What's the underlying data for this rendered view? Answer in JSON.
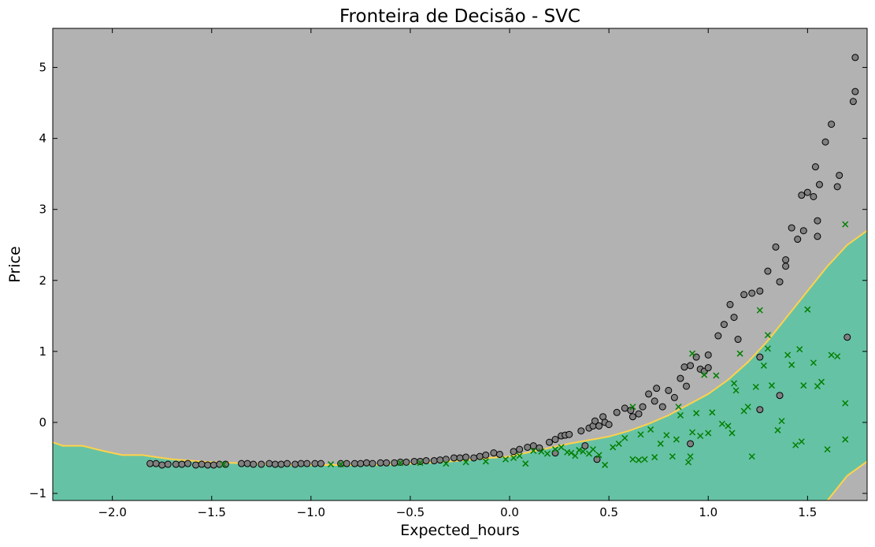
{
  "chart_data": {
    "type": "scatter",
    "title": "Fronteira de Decisão - SVC",
    "xlabel": "Expected_hours",
    "ylabel": "Price",
    "xlim": [
      -2.3,
      1.8
    ],
    "ylim": [
      -1.1,
      5.55
    ],
    "x_ticks": [
      -2.0,
      -1.5,
      -1.0,
      -0.5,
      0.0,
      0.5,
      1.0,
      1.5
    ],
    "x_tick_labels": [
      "−2.0",
      "−1.5",
      "−1.0",
      "−0.5",
      "0.0",
      "0.5",
      "1.0",
      "1.5"
    ],
    "y_ticks": [
      -1,
      0,
      1,
      2,
      3,
      4,
      5
    ],
    "y_tick_labels": [
      "−1",
      "0",
      "1",
      "2",
      "3",
      "4",
      "5"
    ],
    "grid": false,
    "background_color": "#b2b2b2",
    "region_color": "#66c2a5",
    "boundary_color": "#ffd24a",
    "decision_boundary": {
      "x": [
        -2.3,
        -2.25,
        -2.15,
        -2.05,
        -1.95,
        -1.85,
        -1.7,
        -1.5,
        -1.3,
        -1.1,
        -0.9,
        -0.7,
        -0.5,
        -0.3,
        -0.1,
        0.0,
        0.1,
        0.2,
        0.3,
        0.4,
        0.5,
        0.6,
        0.7,
        0.8,
        0.9,
        1.0,
        1.1,
        1.2,
        1.3,
        1.4,
        1.5,
        1.6,
        1.7,
        1.8
      ],
      "y": [
        -0.28,
        -0.33,
        -0.33,
        -0.4,
        -0.46,
        -0.46,
        -0.52,
        -0.56,
        -0.58,
        -0.6,
        -0.6,
        -0.6,
        -0.58,
        -0.55,
        -0.5,
        -0.48,
        -0.42,
        -0.36,
        -0.3,
        -0.25,
        -0.2,
        -0.12,
        -0.02,
        0.1,
        0.25,
        0.4,
        0.6,
        0.85,
        1.15,
        1.5,
        1.85,
        2.2,
        2.5,
        2.7
      ]
    },
    "secondary_region": {
      "x": [
        1.6,
        1.7,
        1.8
      ],
      "y": [
        -1.1,
        -0.75,
        -0.55
      ]
    },
    "series": [
      {
        "name": "",
        "marker": "circle",
        "color": "#808080",
        "points": [
          [
            -1.81,
            -0.58
          ],
          [
            -1.78,
            -0.58
          ],
          [
            -1.75,
            -0.6
          ],
          [
            -1.72,
            -0.59
          ],
          [
            -1.68,
            -0.59
          ],
          [
            -1.65,
            -0.59
          ],
          [
            -1.62,
            -0.58
          ],
          [
            -1.58,
            -0.6
          ],
          [
            -1.55,
            -0.59
          ],
          [
            -1.52,
            -0.6
          ],
          [
            -1.49,
            -0.6
          ],
          [
            -1.46,
            -0.59
          ],
          [
            -1.43,
            -0.59
          ],
          [
            -1.35,
            -0.58
          ],
          [
            -1.32,
            -0.58
          ],
          [
            -1.29,
            -0.59
          ],
          [
            -1.25,
            -0.59
          ],
          [
            -1.21,
            -0.58
          ],
          [
            -1.18,
            -0.59
          ],
          [
            -1.15,
            -0.59
          ],
          [
            -1.12,
            -0.58
          ],
          [
            -1.08,
            -0.59
          ],
          [
            -1.05,
            -0.58
          ],
          [
            -1.02,
            -0.58
          ],
          [
            -0.98,
            -0.58
          ],
          [
            -0.95,
            -0.58
          ],
          [
            -0.85,
            -0.58
          ],
          [
            -0.82,
            -0.58
          ],
          [
            -0.78,
            -0.58
          ],
          [
            -0.75,
            -0.58
          ],
          [
            -0.72,
            -0.57
          ],
          [
            -0.69,
            -0.58
          ],
          [
            -0.65,
            -0.57
          ],
          [
            -0.62,
            -0.57
          ],
          [
            -0.58,
            -0.57
          ],
          [
            -0.55,
            -0.56
          ],
          [
            -0.52,
            -0.56
          ],
          [
            -0.48,
            -0.55
          ],
          [
            -0.45,
            -0.55
          ],
          [
            -0.42,
            -0.54
          ],
          [
            -0.38,
            -0.54
          ],
          [
            -0.35,
            -0.53
          ],
          [
            -0.32,
            -0.52
          ],
          [
            -0.28,
            -0.5
          ],
          [
            -0.25,
            -0.5
          ],
          [
            -0.22,
            -0.49
          ],
          [
            -0.18,
            -0.5
          ],
          [
            -0.15,
            -0.48
          ],
          [
            -0.12,
            -0.46
          ],
          [
            -0.08,
            -0.43
          ],
          [
            -0.05,
            -0.45
          ],
          [
            0.02,
            -0.41
          ],
          [
            0.05,
            -0.38
          ],
          [
            0.09,
            -0.35
          ],
          [
            0.12,
            -0.33
          ],
          [
            0.15,
            -0.36
          ],
          [
            0.2,
            -0.28
          ],
          [
            0.23,
            -0.24
          ],
          [
            0.23,
            -0.43
          ],
          [
            0.26,
            -0.19
          ],
          [
            0.28,
            -0.18
          ],
          [
            0.3,
            -0.17
          ],
          [
            0.36,
            -0.12
          ],
          [
            0.38,
            -0.33
          ],
          [
            0.4,
            -0.08
          ],
          [
            0.42,
            -0.05
          ],
          [
            0.43,
            0.02
          ],
          [
            0.44,
            -0.52
          ],
          [
            0.45,
            -0.05
          ],
          [
            0.47,
            0.08
          ],
          [
            0.48,
            0.0
          ],
          [
            0.5,
            -0.03
          ],
          [
            0.54,
            0.14
          ],
          [
            0.58,
            0.2
          ],
          [
            0.61,
            0.17
          ],
          [
            0.62,
            0.08
          ],
          [
            0.65,
            0.12
          ],
          [
            0.67,
            0.22
          ],
          [
            0.7,
            0.4
          ],
          [
            0.73,
            0.3
          ],
          [
            0.74,
            0.48
          ],
          [
            0.77,
            0.22
          ],
          [
            0.8,
            0.45
          ],
          [
            0.83,
            0.35
          ],
          [
            0.86,
            0.62
          ],
          [
            0.88,
            0.78
          ],
          [
            0.89,
            0.51
          ],
          [
            0.91,
            0.8
          ],
          [
            0.94,
            0.92
          ],
          [
            0.96,
            0.75
          ],
          [
            0.98,
            0.72
          ],
          [
            1.0,
            0.77
          ],
          [
            1.0,
            0.95
          ],
          [
            1.05,
            1.22
          ],
          [
            1.08,
            1.38
          ],
          [
            1.11,
            1.66
          ],
          [
            1.13,
            1.48
          ],
          [
            1.15,
            1.17
          ],
          [
            1.18,
            1.8
          ],
          [
            1.22,
            1.82
          ],
          [
            1.26,
            1.85
          ],
          [
            1.3,
            2.13
          ],
          [
            1.34,
            2.47
          ],
          [
            1.36,
            1.98
          ],
          [
            1.39,
            2.29
          ],
          [
            1.42,
            2.74
          ],
          [
            1.45,
            2.58
          ],
          [
            1.48,
            2.7
          ],
          [
            1.5,
            3.24
          ],
          [
            1.53,
            3.18
          ],
          [
            1.56,
            3.35
          ],
          [
            1.59,
            3.95
          ],
          [
            1.62,
            4.2
          ],
          [
            1.65,
            3.32
          ],
          [
            1.66,
            3.48
          ],
          [
            1.7,
            1.2
          ],
          [
            1.73,
            4.52
          ],
          [
            1.74,
            4.66
          ],
          [
            1.74,
            5.14
          ],
          [
            1.26,
            0.18
          ],
          [
            1.36,
            0.38
          ],
          [
            0.91,
            -0.3
          ],
          [
            1.26,
            0.92
          ],
          [
            1.54,
            3.6
          ],
          [
            1.55,
            2.84
          ],
          [
            1.55,
            2.62
          ],
          [
            1.47,
            3.2
          ],
          [
            1.39,
            2.2
          ]
        ]
      },
      {
        "name": "",
        "marker": "x",
        "color": "#008000",
        "points": [
          [
            -1.44,
            -0.59
          ],
          [
            -0.9,
            -0.59
          ],
          [
            -0.85,
            -0.59
          ],
          [
            -0.55,
            -0.57
          ],
          [
            -0.45,
            -0.57
          ],
          [
            -0.32,
            -0.58
          ],
          [
            -0.22,
            -0.56
          ],
          [
            -0.12,
            -0.55
          ],
          [
            -0.02,
            -0.52
          ],
          [
            0.02,
            -0.5
          ],
          [
            0.05,
            -0.47
          ],
          [
            0.08,
            -0.58
          ],
          [
            0.12,
            -0.4
          ],
          [
            0.16,
            -0.41
          ],
          [
            0.19,
            -0.44
          ],
          [
            0.23,
            -0.38
          ],
          [
            0.26,
            -0.35
          ],
          [
            0.29,
            -0.42
          ],
          [
            0.31,
            -0.43
          ],
          [
            0.33,
            -0.47
          ],
          [
            0.35,
            -0.39
          ],
          [
            0.37,
            -0.41
          ],
          [
            0.4,
            -0.44
          ],
          [
            0.42,
            -0.38
          ],
          [
            0.45,
            -0.46
          ],
          [
            0.48,
            -0.6
          ],
          [
            0.52,
            -0.35
          ],
          [
            0.55,
            -0.3
          ],
          [
            0.58,
            -0.22
          ],
          [
            0.62,
            -0.52
          ],
          [
            0.65,
            -0.53
          ],
          [
            0.66,
            -0.17
          ],
          [
            0.68,
            -0.52
          ],
          [
            0.71,
            -0.1
          ],
          [
            0.73,
            -0.49
          ],
          [
            0.76,
            -0.3
          ],
          [
            0.79,
            -0.18
          ],
          [
            0.82,
            -0.48
          ],
          [
            0.84,
            -0.24
          ],
          [
            0.86,
            0.1
          ],
          [
            0.9,
            -0.56
          ],
          [
            0.91,
            -0.48
          ],
          [
            0.92,
            -0.14
          ],
          [
            0.94,
            0.13
          ],
          [
            0.96,
            -0.19
          ],
          [
            0.98,
            0.67
          ],
          [
            1.0,
            -0.15
          ],
          [
            1.02,
            0.14
          ],
          [
            1.04,
            0.66
          ],
          [
            1.07,
            -0.02
          ],
          [
            1.1,
            -0.05
          ],
          [
            1.12,
            -0.15
          ],
          [
            1.14,
            0.45
          ],
          [
            1.16,
            0.97
          ],
          [
            1.18,
            0.16
          ],
          [
            1.2,
            0.22
          ],
          [
            1.22,
            -0.48
          ],
          [
            1.24,
            0.5
          ],
          [
            1.26,
            1.58
          ],
          [
            1.28,
            0.8
          ],
          [
            1.3,
            1.04
          ],
          [
            1.32,
            0.52
          ],
          [
            1.35,
            -0.11
          ],
          [
            1.37,
            0.02
          ],
          [
            1.4,
            0.95
          ],
          [
            1.42,
            0.81
          ],
          [
            1.44,
            -0.32
          ],
          [
            1.46,
            1.03
          ],
          [
            1.47,
            -0.27
          ],
          [
            1.48,
            0.52
          ],
          [
            1.5,
            1.59
          ],
          [
            1.53,
            0.84
          ],
          [
            1.55,
            0.51
          ],
          [
            1.57,
            0.57
          ],
          [
            1.6,
            -0.38
          ],
          [
            1.62,
            0.95
          ],
          [
            1.65,
            0.93
          ],
          [
            1.69,
            0.27
          ],
          [
            1.69,
            -0.24
          ],
          [
            1.69,
            2.79
          ],
          [
            0.92,
            0.97
          ],
          [
            1.3,
            1.23
          ],
          [
            1.13,
            0.55
          ],
          [
            0.85,
            0.22
          ],
          [
            0.62,
            0.22
          ]
        ]
      }
    ]
  }
}
